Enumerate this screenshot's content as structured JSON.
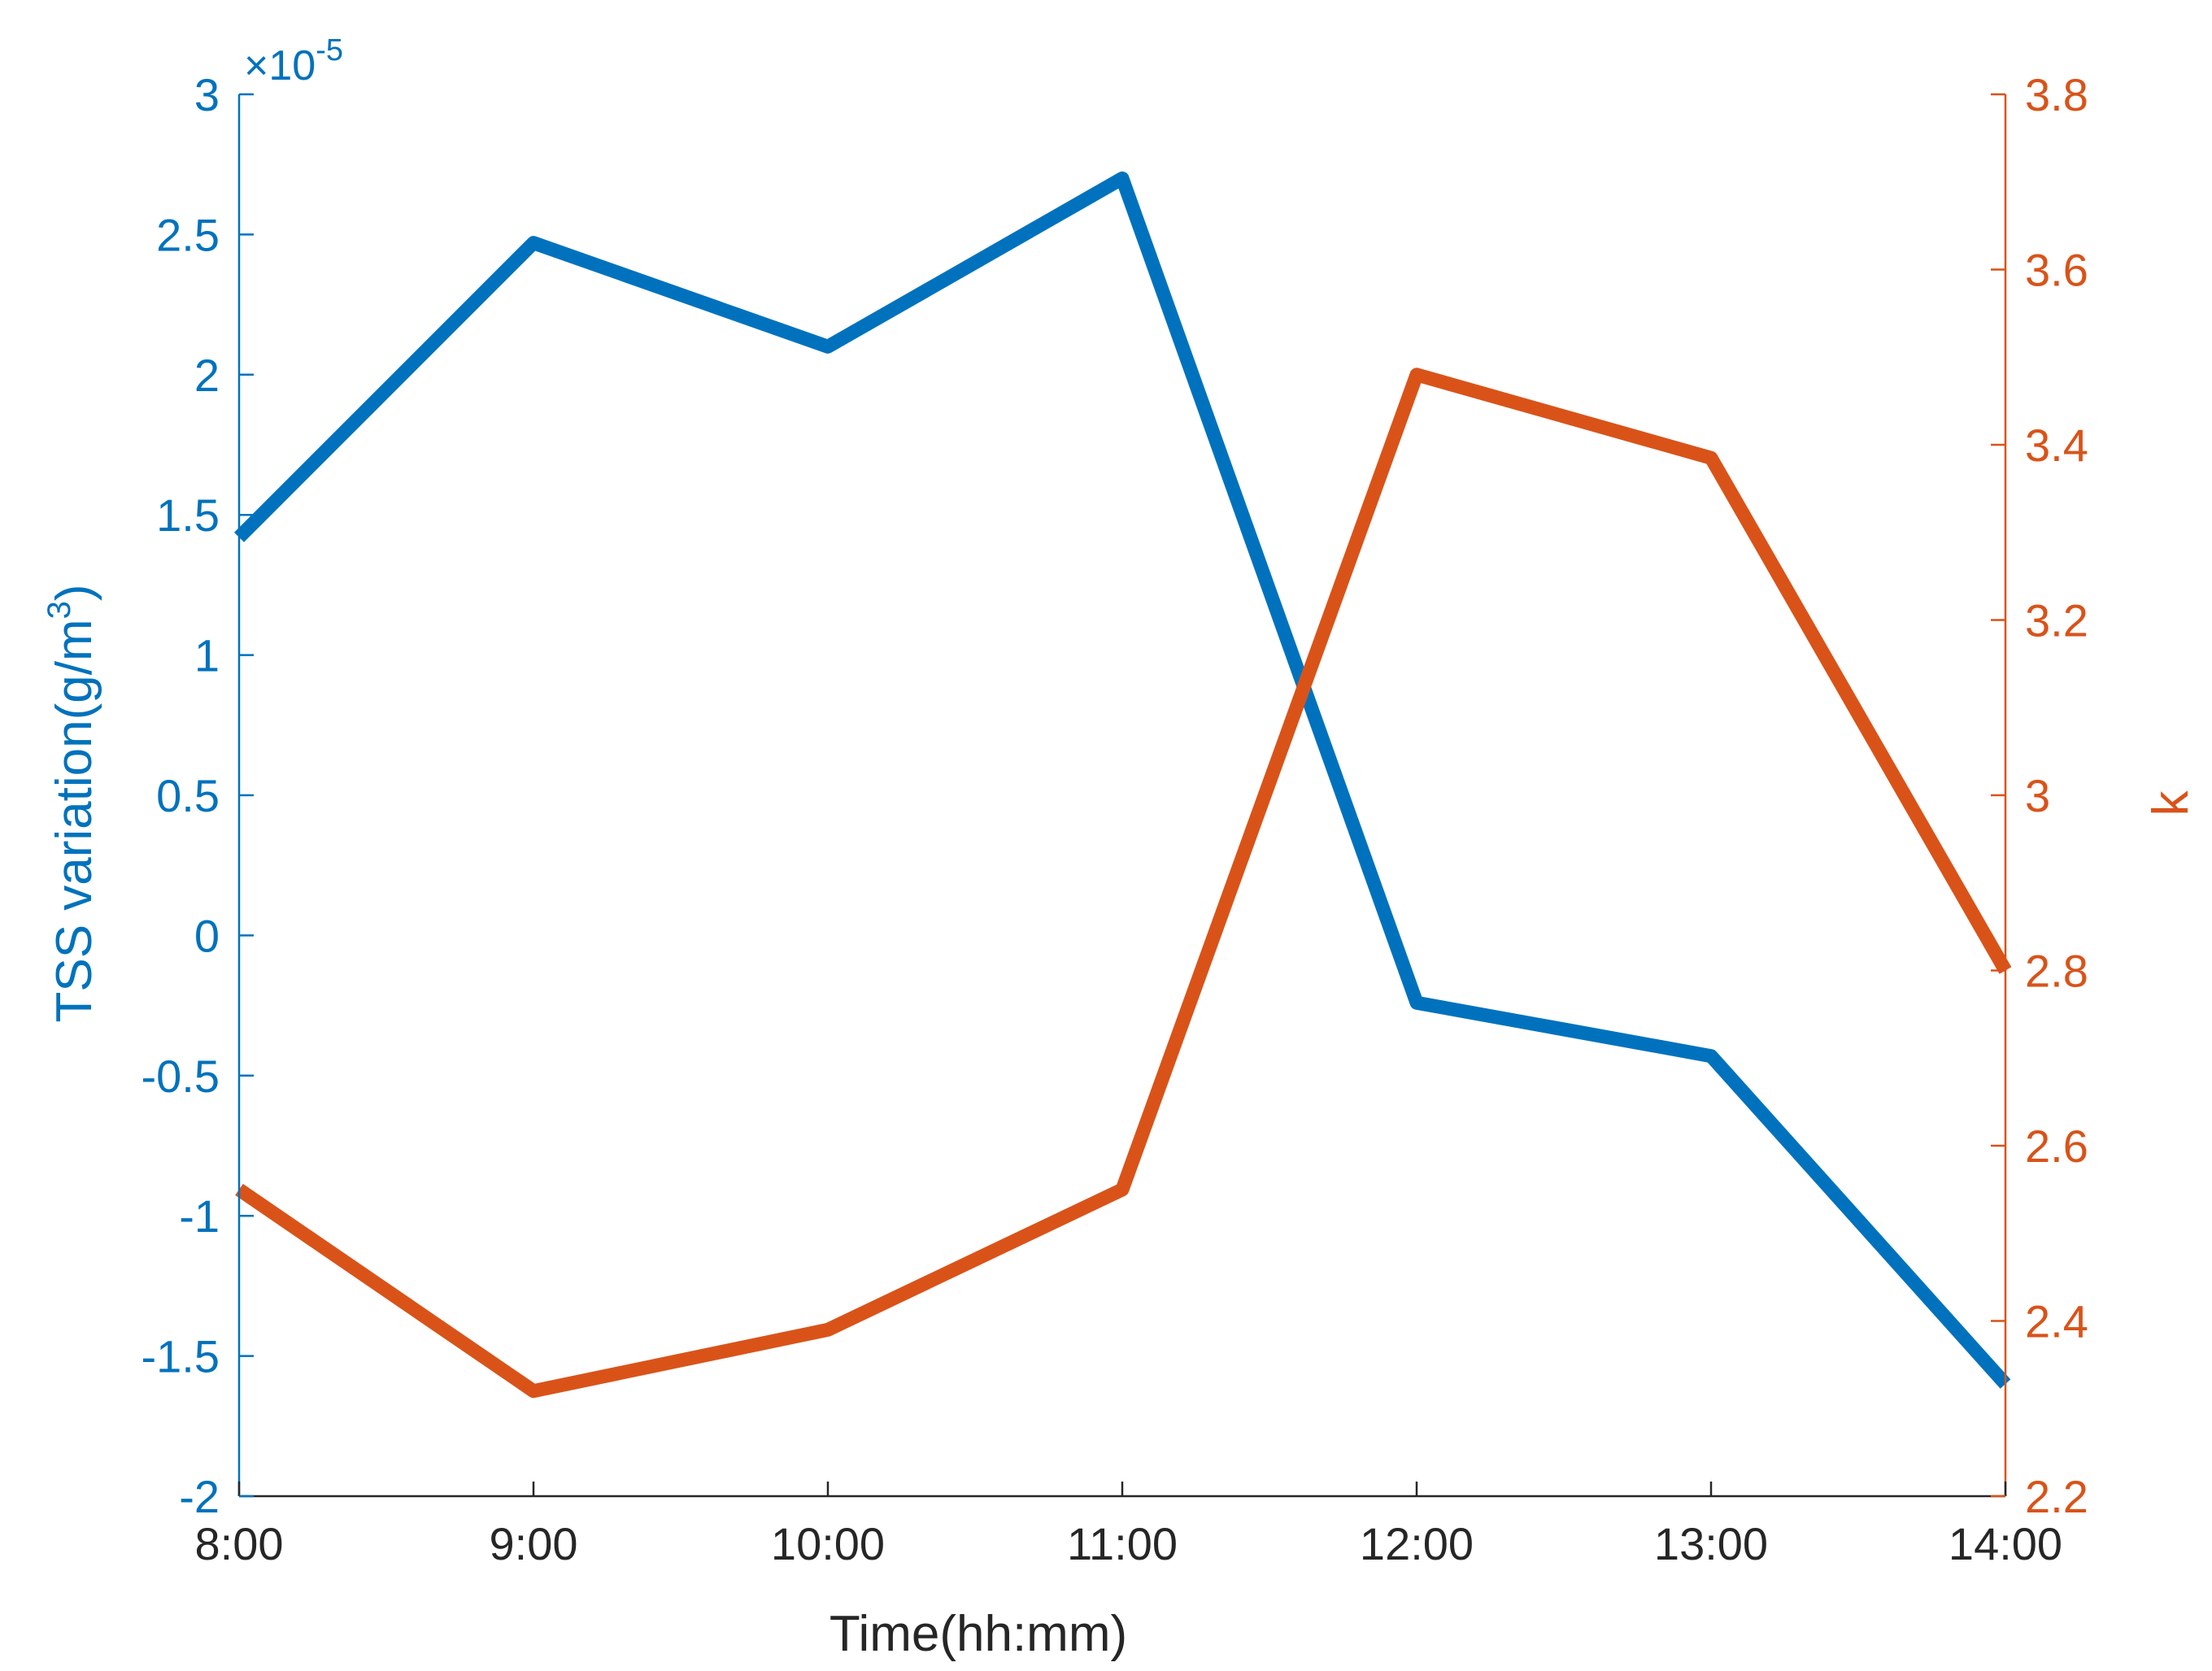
{
  "chart_data": {
    "type": "line",
    "categories": [
      "8:00",
      "9:00",
      "10:00",
      "11:00",
      "12:00",
      "13:00",
      "14:00"
    ],
    "xlabel": "Time(hh:mm)",
    "ylabel_left_text": "TSS variation(g/m",
    "ylabel_left_superscript": "3",
    "ylabel_left_close": ")",
    "ylabel_right": "k",
    "left_axis": {
      "ylim": [
        -2,
        3
      ],
      "ticks": [
        3,
        2.5,
        2,
        1.5,
        1,
        0.5,
        0,
        -0.5,
        -1,
        -1.5,
        -2
      ],
      "tick_labels": [
        "3",
        "2.5",
        "2",
        "1.5",
        "1",
        "0.5",
        "0",
        "-0.5",
        "-1",
        "-1.5",
        "-2"
      ],
      "exponent_prefix": "×10",
      "exponent": "-5",
      "color": "#0072BD"
    },
    "right_axis": {
      "ylim": [
        2.2,
        3.8
      ],
      "ticks": [
        3.8,
        3.6,
        3.4,
        3.2,
        3,
        2.8,
        2.6,
        2.4,
        2.2
      ],
      "tick_labels": [
        "3.8",
        "3.6",
        "3.4",
        "3.2",
        "3",
        "2.8",
        "2.6",
        "2.4",
        "2.2"
      ],
      "color": "#D95319"
    },
    "series": [
      {
        "axis": "left",
        "color": "#0072BD",
        "values": [
          1.42,
          2.47,
          2.1,
          2.7,
          -0.24,
          -0.43,
          -1.6
        ]
      },
      {
        "axis": "right",
        "color": "#D95319",
        "values": [
          2.55,
          2.32,
          2.39,
          2.55,
          3.48,
          3.385,
          2.8
        ]
      }
    ],
    "grid": false,
    "legend": "none"
  }
}
